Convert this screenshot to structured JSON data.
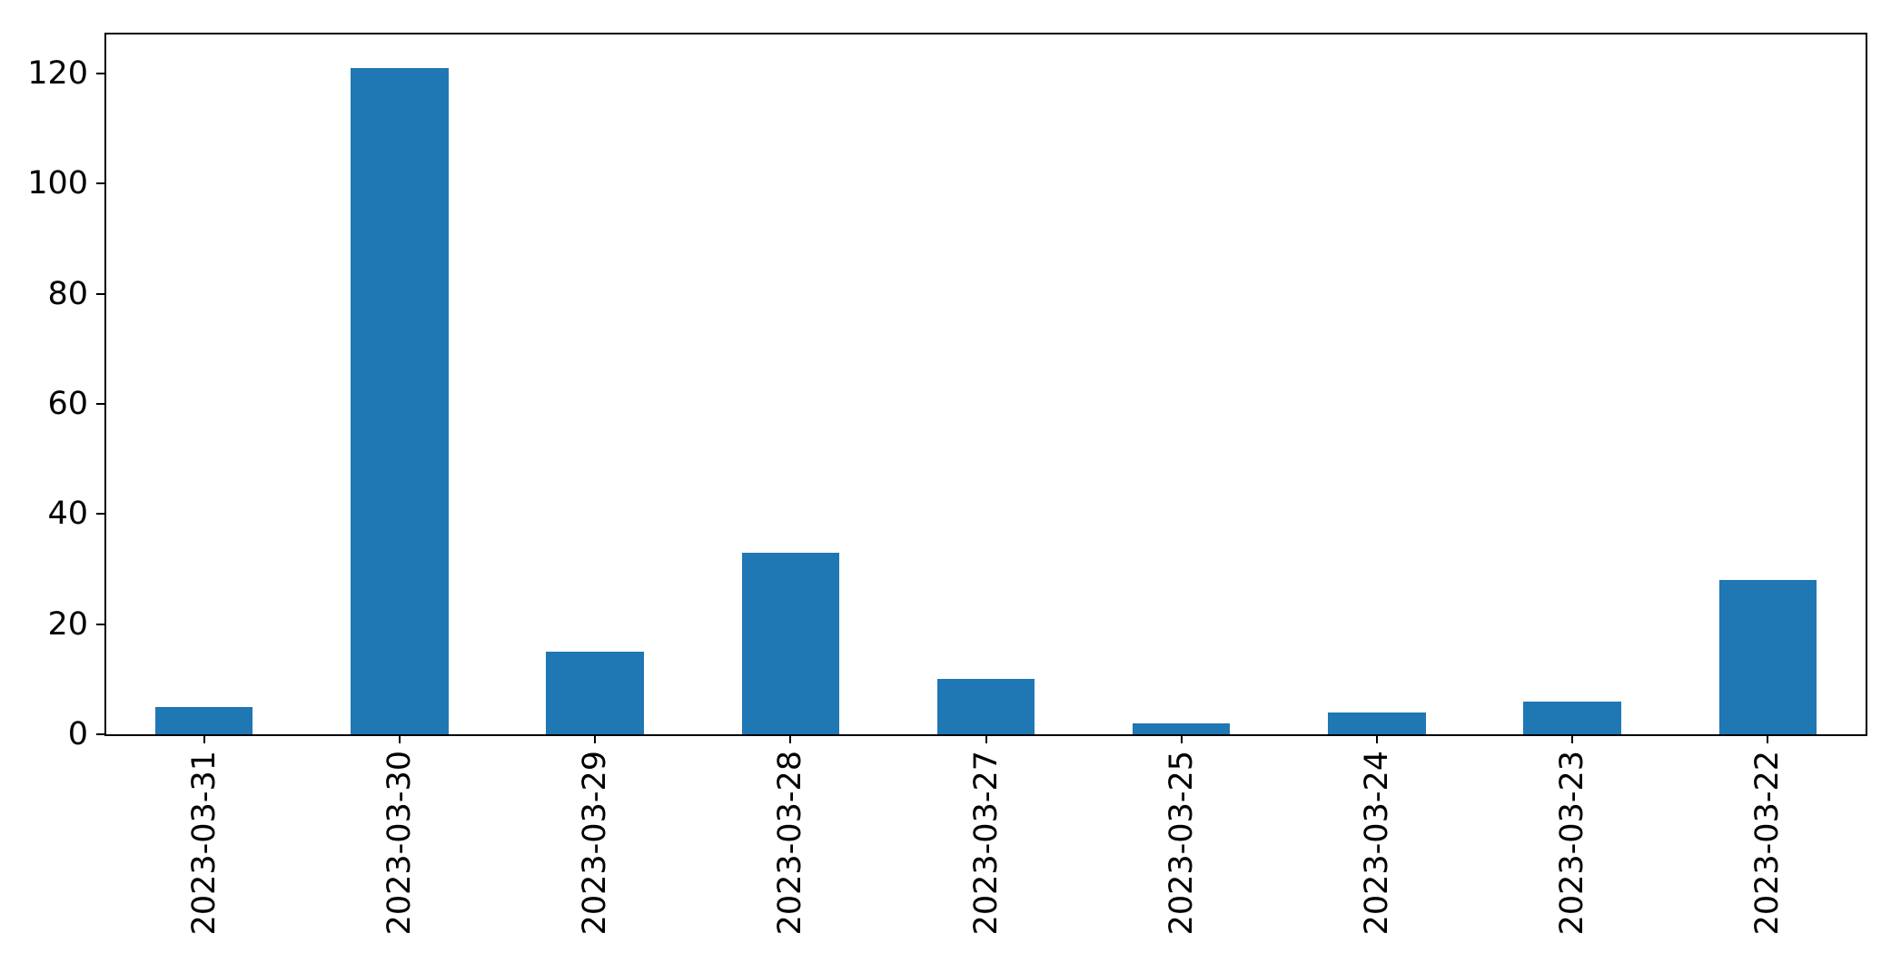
{
  "chart_data": {
    "type": "bar",
    "categories": [
      "2023-03-31",
      "2023-03-30",
      "2023-03-29",
      "2023-03-28",
      "2023-03-27",
      "2023-03-25",
      "2023-03-24",
      "2023-03-23",
      "2023-03-22"
    ],
    "values": [
      5,
      121,
      15,
      33,
      10,
      2,
      4,
      6,
      28
    ],
    "title": "",
    "xlabel": "",
    "ylabel": "",
    "ylim": [
      0,
      127.05
    ],
    "yticks": [
      0,
      20,
      40,
      60,
      80,
      100,
      120
    ],
    "bar_color": "#1f77b4",
    "bar_width_fraction": 0.5,
    "grid": false,
    "legend_position": "none",
    "axis_color": "#000000",
    "background_color": "#ffffff"
  }
}
